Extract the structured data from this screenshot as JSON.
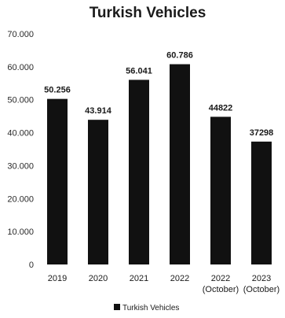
{
  "chart_data": {
    "type": "bar",
    "title": "Turkish Vehicles",
    "categories": [
      [
        "2019"
      ],
      [
        "2020"
      ],
      [
        "2021"
      ],
      [
        "2022"
      ],
      [
        "2022",
        "(October)"
      ],
      [
        "2023",
        "(October)"
      ]
    ],
    "series": [
      {
        "name": "Turkish Vehicles",
        "values": [
          50256,
          43914,
          56041,
          60786,
          44822,
          37298
        ],
        "labels": [
          "50.256",
          "43.914",
          "56.041",
          "60.786",
          "44822",
          "37298"
        ],
        "color": "#111111"
      }
    ],
    "ylim": [
      0,
      70000
    ],
    "yticks": [
      0,
      10000,
      20000,
      30000,
      40000,
      50000,
      60000,
      70000
    ],
    "ytick_labels": [
      "0",
      "10.000",
      "20.000",
      "30.000",
      "40.000",
      "50.000",
      "60.000",
      "70.000"
    ],
    "grid": false,
    "legend_position": "bottom-center"
  }
}
